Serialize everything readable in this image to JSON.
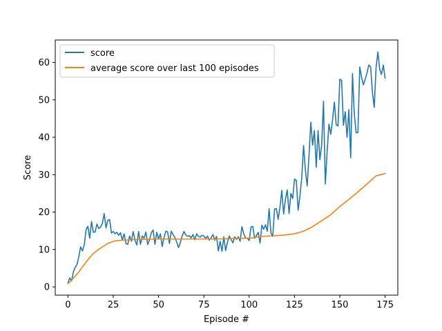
{
  "chart_data": {
    "type": "line",
    "title": "",
    "xlabel": "Episode #",
    "ylabel": "Score",
    "xlim": [
      -7,
      182
    ],
    "ylim": [
      -2.2,
      66
    ],
    "x_ticks": [
      0,
      25,
      50,
      75,
      100,
      125,
      150,
      175
    ],
    "y_ticks": [
      0,
      10,
      20,
      30,
      40,
      50,
      60
    ],
    "grid": false,
    "legend_position": "top-left",
    "series": [
      {
        "name": "score",
        "color": "#1f77b4",
        "x": [
          0,
          1,
          2,
          3,
          4,
          5,
          6,
          7,
          8,
          9,
          10,
          11,
          12,
          13,
          14,
          15,
          16,
          17,
          18,
          19,
          20,
          21,
          22,
          23,
          24,
          25,
          26,
          27,
          28,
          29,
          30,
          31,
          32,
          33,
          34,
          35,
          36,
          37,
          38,
          39,
          40,
          41,
          42,
          43,
          44,
          45,
          46,
          47,
          48,
          49,
          50,
          51,
          52,
          53,
          54,
          55,
          56,
          57,
          58,
          59,
          60,
          61,
          62,
          63,
          64,
          65,
          66,
          67,
          68,
          69,
          70,
          71,
          72,
          73,
          74,
          75,
          76,
          77,
          78,
          79,
          80,
          81,
          82,
          83,
          84,
          85,
          86,
          87,
          88,
          89,
          90,
          91,
          92,
          93,
          94,
          95,
          96,
          97,
          98,
          99,
          100,
          101,
          102,
          103,
          104,
          105,
          106,
          107,
          108,
          109,
          110,
          111,
          112,
          113,
          114,
          115,
          116,
          117,
          118,
          119,
          120,
          121,
          122,
          123,
          124,
          125,
          126,
          127,
          128,
          129,
          130,
          131,
          132,
          133,
          134,
          135,
          136,
          137,
          138,
          139,
          140,
          141,
          142,
          143,
          144,
          145,
          146,
          147,
          148,
          149,
          150,
          151,
          152,
          153,
          154,
          155,
          156,
          157,
          158,
          159,
          160,
          161,
          162,
          163,
          164,
          165,
          166,
          167,
          168,
          169,
          170,
          171,
          172,
          173,
          174,
          175
        ],
        "values": [
          1.0,
          2.4,
          1.6,
          4.0,
          5.2,
          6.0,
          8.1,
          10.7,
          9.6,
          11.2,
          15.3,
          16.2,
          13.0,
          17.5,
          14.6,
          14.7,
          16.8,
          15.6,
          16.0,
          17.0,
          19.6,
          15.8,
          17.8,
          18.0,
          14.4,
          14.8,
          14.2,
          14.6,
          13.8,
          14.5,
          12.5,
          14.2,
          11.6,
          11.4,
          13.6,
          12.2,
          14.8,
          12.5,
          11.2,
          14.8,
          11.4,
          13.6,
          13.0,
          14.7,
          11.3,
          12.6,
          14.5,
          15.2,
          11.4,
          14.6,
          12.8,
          14.2,
          10.8,
          13.2,
          14.9,
          14.7,
          11.6,
          14.9,
          14.0,
          13.2,
          12.0,
          10.5,
          11.8,
          13.6,
          14.8,
          13.9,
          13.5,
          13.7,
          13.1,
          14.0,
          12.6,
          14.2,
          13.5,
          13.3,
          13.8,
          13.6,
          12.9,
          13.6,
          12.5,
          13.1,
          14.0,
          12.5,
          13.5,
          9.6,
          12.2,
          9.5,
          13.4,
          9.7,
          11.9,
          13.6,
          12.7,
          11.8,
          13.4,
          12.7,
          13.4,
          12.2,
          16.1,
          14.2,
          13.1,
          13.0,
          12.4,
          16.0,
          16.2,
          13.0,
          13.7,
          14.6,
          11.7,
          16.5,
          15.4,
          16.6,
          14.9,
          20.9,
          14.4,
          13.5,
          20.8,
          20.9,
          18.1,
          21.4,
          25.8,
          19.5,
          23.4,
          25.9,
          19.6,
          25.0,
          23.6,
          28.8,
          28.5,
          20.5,
          24.3,
          29.2,
          37.8,
          31.2,
          27.0,
          35.0,
          44.0,
          37.9,
          41.8,
          32.0,
          41.8,
          34.0,
          38.0,
          49.6,
          27.5,
          36.0,
          43.5,
          40.8,
          44.6,
          49.4,
          43.4,
          43.0,
          55.5,
          55.2,
          43.2,
          46.8,
          40.0,
          47.4,
          34.5,
          57.0,
          46.2,
          41.2,
          41.3,
          58.8,
          56.0,
          54.0,
          55.5,
          57.2,
          59.3,
          58.8,
          52.0,
          48.0,
          58.6,
          62.8,
          58.2,
          56.8,
          59.3,
          55.8
        ]
      },
      {
        "name": "average score over last 100 episodes",
        "color": "#ff7f0e",
        "x": [
          0,
          2,
          4,
          6,
          8,
          10,
          12,
          14,
          16,
          18,
          20,
          22,
          24,
          26,
          28,
          30,
          40,
          50,
          60,
          70,
          80,
          90,
          95,
          100,
          105,
          110,
          115,
          120,
          125,
          130,
          135,
          140,
          145,
          150,
          155,
          160,
          165,
          170,
          175
        ],
        "values": [
          0.9,
          1.8,
          2.9,
          4.0,
          5.4,
          6.6,
          7.9,
          8.9,
          9.7,
          10.4,
          11.0,
          11.6,
          12.0,
          12.3,
          12.4,
          12.5,
          12.7,
          12.8,
          12.8,
          12.8,
          12.8,
          12.9,
          13.0,
          13.0,
          13.4,
          13.6,
          13.7,
          13.9,
          14.2,
          14.9,
          16.1,
          17.7,
          19.3,
          21.5,
          23.4,
          25.4,
          27.5,
          29.7,
          30.3
        ]
      }
    ]
  }
}
